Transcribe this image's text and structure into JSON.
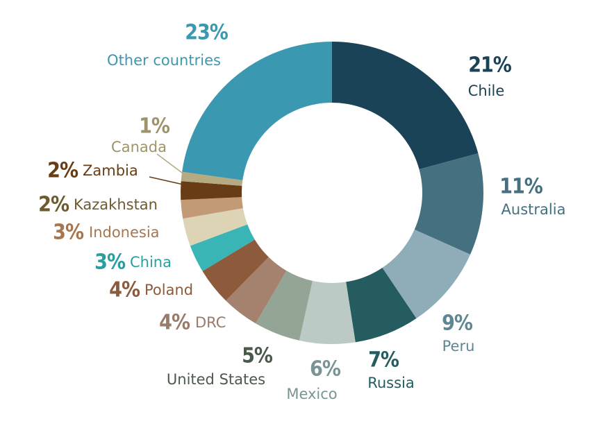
{
  "chart_data": {
    "type": "donut",
    "categories": [
      "Chile",
      "Australia",
      "Peru",
      "Russia",
      "Mexico",
      "United States",
      "DRC",
      "Poland",
      "China",
      "Indonesia",
      "Kazakhstan",
      "Zambia",
      "Canada",
      "Other countries"
    ],
    "values": [
      21,
      11,
      9,
      7,
      6,
      5,
      4,
      4,
      3,
      3,
      2,
      2,
      1,
      23
    ],
    "value_labels": [
      "21%",
      "11%",
      "9%",
      "7%",
      "6%",
      "5%",
      "4%",
      "4%",
      "3%",
      "3%",
      "2%",
      "2%",
      "1%",
      "23%"
    ],
    "colors": [
      "#1a4358",
      "#44707f",
      "#8fadb8",
      "#245c60",
      "#bccac6",
      "#95a595",
      "#a4826e",
      "#8e5a3c",
      "#3ab5b5",
      "#ddd3b5",
      "#c39a76",
      "#683c14",
      "#b6aa82",
      "#3a98b1"
    ]
  }
}
